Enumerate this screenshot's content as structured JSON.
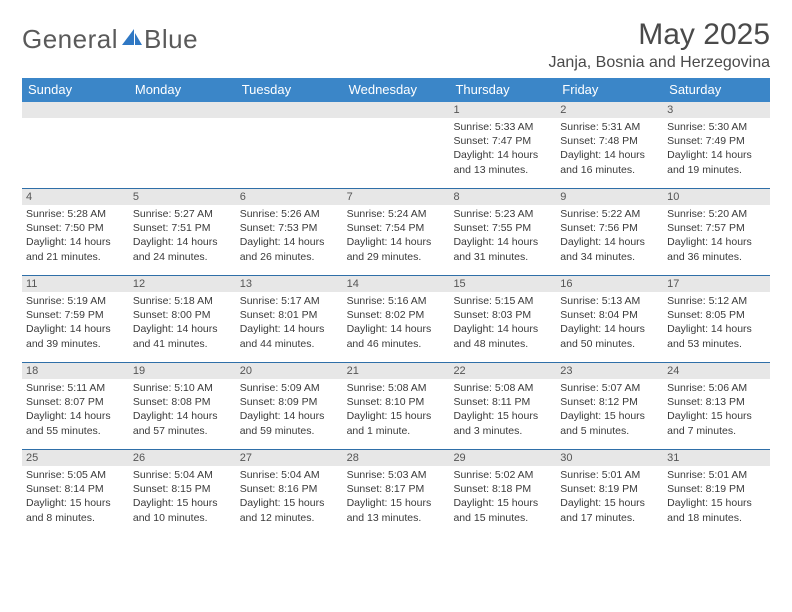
{
  "brand": {
    "word1": "General",
    "word2": "Blue"
  },
  "title": "May 2025",
  "location": "Janja, Bosnia and Herzegovina",
  "colors": {
    "header_bg": "#3b86c8",
    "row_divider": "#2f6fa8",
    "daynum_bg": "#e7e7e7",
    "text": "#3a3a3a",
    "brand_gray": "#5a5a5a",
    "brand_blue": "#2f78c4"
  },
  "day_names": [
    "Sunday",
    "Monday",
    "Tuesday",
    "Wednesday",
    "Thursday",
    "Friday",
    "Saturday"
  ],
  "weeks": [
    [
      {
        "empty": true
      },
      {
        "empty": true
      },
      {
        "empty": true
      },
      {
        "empty": true
      },
      {
        "n": "1",
        "sr": "Sunrise: 5:33 AM",
        "ss": "Sunset: 7:47 PM",
        "dl1": "Daylight: 14 hours",
        "dl2": "and 13 minutes."
      },
      {
        "n": "2",
        "sr": "Sunrise: 5:31 AM",
        "ss": "Sunset: 7:48 PM",
        "dl1": "Daylight: 14 hours",
        "dl2": "and 16 minutes."
      },
      {
        "n": "3",
        "sr": "Sunrise: 5:30 AM",
        "ss": "Sunset: 7:49 PM",
        "dl1": "Daylight: 14 hours",
        "dl2": "and 19 minutes."
      }
    ],
    [
      {
        "n": "4",
        "sr": "Sunrise: 5:28 AM",
        "ss": "Sunset: 7:50 PM",
        "dl1": "Daylight: 14 hours",
        "dl2": "and 21 minutes."
      },
      {
        "n": "5",
        "sr": "Sunrise: 5:27 AM",
        "ss": "Sunset: 7:51 PM",
        "dl1": "Daylight: 14 hours",
        "dl2": "and 24 minutes."
      },
      {
        "n": "6",
        "sr": "Sunrise: 5:26 AM",
        "ss": "Sunset: 7:53 PM",
        "dl1": "Daylight: 14 hours",
        "dl2": "and 26 minutes."
      },
      {
        "n": "7",
        "sr": "Sunrise: 5:24 AM",
        "ss": "Sunset: 7:54 PM",
        "dl1": "Daylight: 14 hours",
        "dl2": "and 29 minutes."
      },
      {
        "n": "8",
        "sr": "Sunrise: 5:23 AM",
        "ss": "Sunset: 7:55 PM",
        "dl1": "Daylight: 14 hours",
        "dl2": "and 31 minutes."
      },
      {
        "n": "9",
        "sr": "Sunrise: 5:22 AM",
        "ss": "Sunset: 7:56 PM",
        "dl1": "Daylight: 14 hours",
        "dl2": "and 34 minutes."
      },
      {
        "n": "10",
        "sr": "Sunrise: 5:20 AM",
        "ss": "Sunset: 7:57 PM",
        "dl1": "Daylight: 14 hours",
        "dl2": "and 36 minutes."
      }
    ],
    [
      {
        "n": "11",
        "sr": "Sunrise: 5:19 AM",
        "ss": "Sunset: 7:59 PM",
        "dl1": "Daylight: 14 hours",
        "dl2": "and 39 minutes."
      },
      {
        "n": "12",
        "sr": "Sunrise: 5:18 AM",
        "ss": "Sunset: 8:00 PM",
        "dl1": "Daylight: 14 hours",
        "dl2": "and 41 minutes."
      },
      {
        "n": "13",
        "sr": "Sunrise: 5:17 AM",
        "ss": "Sunset: 8:01 PM",
        "dl1": "Daylight: 14 hours",
        "dl2": "and 44 minutes."
      },
      {
        "n": "14",
        "sr": "Sunrise: 5:16 AM",
        "ss": "Sunset: 8:02 PM",
        "dl1": "Daylight: 14 hours",
        "dl2": "and 46 minutes."
      },
      {
        "n": "15",
        "sr": "Sunrise: 5:15 AM",
        "ss": "Sunset: 8:03 PM",
        "dl1": "Daylight: 14 hours",
        "dl2": "and 48 minutes."
      },
      {
        "n": "16",
        "sr": "Sunrise: 5:13 AM",
        "ss": "Sunset: 8:04 PM",
        "dl1": "Daylight: 14 hours",
        "dl2": "and 50 minutes."
      },
      {
        "n": "17",
        "sr": "Sunrise: 5:12 AM",
        "ss": "Sunset: 8:05 PM",
        "dl1": "Daylight: 14 hours",
        "dl2": "and 53 minutes."
      }
    ],
    [
      {
        "n": "18",
        "sr": "Sunrise: 5:11 AM",
        "ss": "Sunset: 8:07 PM",
        "dl1": "Daylight: 14 hours",
        "dl2": "and 55 minutes."
      },
      {
        "n": "19",
        "sr": "Sunrise: 5:10 AM",
        "ss": "Sunset: 8:08 PM",
        "dl1": "Daylight: 14 hours",
        "dl2": "and 57 minutes."
      },
      {
        "n": "20",
        "sr": "Sunrise: 5:09 AM",
        "ss": "Sunset: 8:09 PM",
        "dl1": "Daylight: 14 hours",
        "dl2": "and 59 minutes."
      },
      {
        "n": "21",
        "sr": "Sunrise: 5:08 AM",
        "ss": "Sunset: 8:10 PM",
        "dl1": "Daylight: 15 hours",
        "dl2": "and 1 minute."
      },
      {
        "n": "22",
        "sr": "Sunrise: 5:08 AM",
        "ss": "Sunset: 8:11 PM",
        "dl1": "Daylight: 15 hours",
        "dl2": "and 3 minutes."
      },
      {
        "n": "23",
        "sr": "Sunrise: 5:07 AM",
        "ss": "Sunset: 8:12 PM",
        "dl1": "Daylight: 15 hours",
        "dl2": "and 5 minutes."
      },
      {
        "n": "24",
        "sr": "Sunrise: 5:06 AM",
        "ss": "Sunset: 8:13 PM",
        "dl1": "Daylight: 15 hours",
        "dl2": "and 7 minutes."
      }
    ],
    [
      {
        "n": "25",
        "sr": "Sunrise: 5:05 AM",
        "ss": "Sunset: 8:14 PM",
        "dl1": "Daylight: 15 hours",
        "dl2": "and 8 minutes."
      },
      {
        "n": "26",
        "sr": "Sunrise: 5:04 AM",
        "ss": "Sunset: 8:15 PM",
        "dl1": "Daylight: 15 hours",
        "dl2": "and 10 minutes."
      },
      {
        "n": "27",
        "sr": "Sunrise: 5:04 AM",
        "ss": "Sunset: 8:16 PM",
        "dl1": "Daylight: 15 hours",
        "dl2": "and 12 minutes."
      },
      {
        "n": "28",
        "sr": "Sunrise: 5:03 AM",
        "ss": "Sunset: 8:17 PM",
        "dl1": "Daylight: 15 hours",
        "dl2": "and 13 minutes."
      },
      {
        "n": "29",
        "sr": "Sunrise: 5:02 AM",
        "ss": "Sunset: 8:18 PM",
        "dl1": "Daylight: 15 hours",
        "dl2": "and 15 minutes."
      },
      {
        "n": "30",
        "sr": "Sunrise: 5:01 AM",
        "ss": "Sunset: 8:19 PM",
        "dl1": "Daylight: 15 hours",
        "dl2": "and 17 minutes."
      },
      {
        "n": "31",
        "sr": "Sunrise: 5:01 AM",
        "ss": "Sunset: 8:19 PM",
        "dl1": "Daylight: 15 hours",
        "dl2": "and 18 minutes."
      }
    ]
  ]
}
